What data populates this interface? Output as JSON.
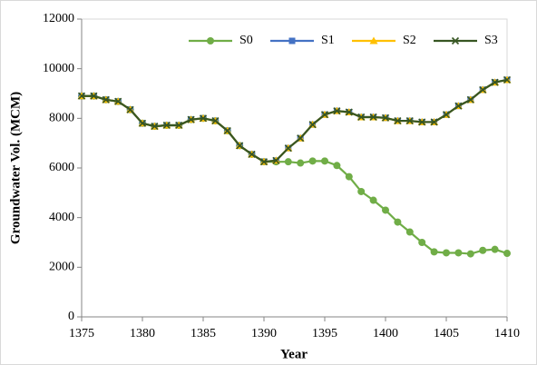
{
  "chart_data": {
    "type": "line",
    "x_label": "Year",
    "y_label": "Groundwater Vol. (MCM)",
    "x": [
      1375,
      1376,
      1377,
      1378,
      1379,
      1380,
      1381,
      1382,
      1383,
      1384,
      1385,
      1386,
      1387,
      1388,
      1389,
      1390,
      1391,
      1392,
      1393,
      1394,
      1395,
      1396,
      1397,
      1398,
      1399,
      1400,
      1401,
      1402,
      1403,
      1404,
      1405,
      1406,
      1407,
      1408,
      1409,
      1410
    ],
    "series": [
      {
        "name": "S0",
        "color": "#70ad47",
        "marker": "circle",
        "values": [
          8900,
          8900,
          8750,
          8680,
          8350,
          7800,
          7680,
          7720,
          7720,
          7950,
          8000,
          7900,
          7500,
          6900,
          6550,
          6250,
          6250,
          6250,
          6200,
          6280,
          6280,
          6100,
          5650,
          5050,
          4700,
          4300,
          3820,
          3420,
          3000,
          2620,
          2580,
          2580,
          2540,
          2680,
          2720,
          2560
        ]
      },
      {
        "name": "S1",
        "color": "#4472c4",
        "marker": "square",
        "values": [
          8900,
          8900,
          8750,
          8680,
          8350,
          7800,
          7680,
          7720,
          7720,
          7950,
          8000,
          7900,
          7500,
          6900,
          6550,
          6250,
          6300,
          6800,
          7200,
          7750,
          8150,
          8300,
          8250,
          8050,
          8050,
          8020,
          7900,
          7900,
          7850,
          7850,
          8150,
          8500,
          8750,
          9150,
          9450,
          9550
        ]
      },
      {
        "name": "S2",
        "color": "#ffc000",
        "marker": "triangle",
        "values": [
          8900,
          8900,
          8750,
          8680,
          8350,
          7800,
          7680,
          7720,
          7720,
          7950,
          8000,
          7900,
          7500,
          6900,
          6550,
          6250,
          6300,
          6800,
          7200,
          7750,
          8150,
          8300,
          8250,
          8050,
          8050,
          8020,
          7900,
          7900,
          7850,
          7850,
          8150,
          8500,
          8750,
          9150,
          9450,
          9550
        ]
      },
      {
        "name": "S3",
        "color": "#375623",
        "marker": "x",
        "values": [
          8900,
          8900,
          8750,
          8680,
          8350,
          7800,
          7680,
          7720,
          7720,
          7950,
          8000,
          7900,
          7500,
          6900,
          6550,
          6250,
          6300,
          6800,
          7200,
          7750,
          8150,
          8300,
          8250,
          8050,
          8050,
          8020,
          7900,
          7900,
          7850,
          7850,
          8150,
          8500,
          8750,
          9150,
          9450,
          9550
        ]
      }
    ],
    "xlim": [
      1375,
      1410
    ],
    "xticks": [
      1375,
      1380,
      1385,
      1390,
      1395,
      1400,
      1405,
      1410
    ],
    "ylim": [
      0,
      12000
    ],
    "yticks": [
      0,
      2000,
      4000,
      6000,
      8000,
      10000,
      12000
    ],
    "grid": false,
    "legend": "top-right"
  }
}
